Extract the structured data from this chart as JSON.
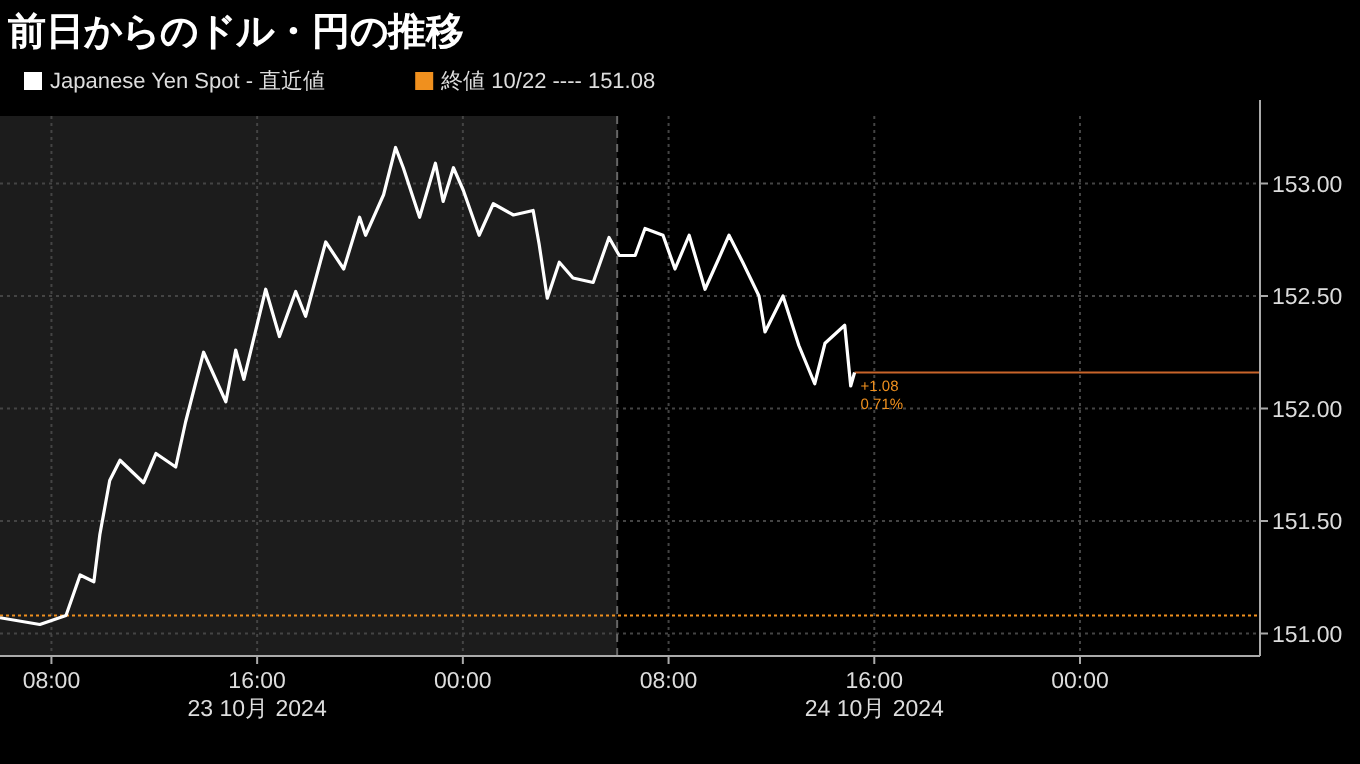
{
  "chart_data": {
    "type": "line",
    "title": "前日からのドル・円の推移",
    "x": [
      "2024-10-23T06:00",
      "2024-10-23T07:33",
      "2024-10-23T08:34",
      "2024-10-23T09:07",
      "2024-10-23T09:39",
      "2024-10-23T09:53",
      "2024-10-23T10:16",
      "2024-10-23T10:40",
      "2024-10-23T11:35",
      "2024-10-23T12:04",
      "2024-10-23T12:50",
      "2024-10-23T13:13",
      "2024-10-23T13:55",
      "2024-10-23T14:47",
      "2024-10-23T15:10",
      "2024-10-23T15:29",
      "2024-10-23T16:20",
      "2024-10-23T16:52",
      "2024-10-23T17:30",
      "2024-10-23T17:53",
      "2024-10-23T18:40",
      "2024-10-23T19:22",
      "2024-10-23T19:59",
      "2024-10-23T20:13",
      "2024-10-23T20:55",
      "2024-10-23T21:23",
      "2024-10-23T21:41",
      "2024-10-23T22:19",
      "2024-10-23T22:56",
      "2024-10-23T23:14",
      "2024-10-23T23:38",
      "2024-10-24T00:01",
      "2024-10-24T00:38",
      "2024-10-24T01:11",
      "2024-10-24T01:58",
      "2024-10-24T02:44",
      "2024-10-24T02:58",
      "2024-10-24T03:17",
      "2024-10-24T03:45",
      "2024-10-24T04:17",
      "2024-10-24T05:04",
      "2024-10-24T05:41",
      "2024-10-24T06:05",
      "2024-10-24T06:42",
      "2024-10-24T07:05",
      "2024-10-24T07:47",
      "2024-10-24T08:15",
      "2024-10-24T08:48",
      "2024-10-24T09:25",
      "2024-10-24T09:58",
      "2024-10-24T10:21",
      "2024-10-24T10:53",
      "2024-10-24T11:31",
      "2024-10-24T11:45",
      "2024-10-24T12:27",
      "2024-10-24T13:04",
      "2024-10-24T13:41",
      "2024-10-24T14:05",
      "2024-10-24T14:51",
      "2024-10-24T15:05",
      "2024-10-24T15:14"
    ],
    "series": [
      {
        "name": "Japanese Yen Spot - 直近値",
        "color": "#ffffff",
        "values": [
          151.07,
          151.04,
          151.08,
          151.26,
          151.23,
          151.44,
          151.68,
          151.77,
          151.67,
          151.8,
          151.74,
          151.94,
          152.25,
          152.03,
          152.26,
          152.13,
          152.53,
          152.32,
          152.52,
          152.41,
          152.74,
          152.62,
          152.85,
          152.77,
          152.95,
          153.16,
          153.07,
          152.85,
          153.09,
          152.92,
          153.07,
          152.97,
          152.77,
          152.91,
          152.86,
          152.88,
          152.73,
          152.49,
          152.65,
          152.58,
          152.56,
          152.76,
          152.68,
          152.68,
          152.8,
          152.77,
          152.62,
          152.77,
          152.53,
          152.67,
          152.77,
          152.65,
          152.5,
          152.34,
          152.5,
          152.28,
          152.11,
          152.29,
          152.37,
          152.1,
          152.16
        ]
      }
    ],
    "xlim": [
      "2024-10-23T06:00",
      "2024-10-25T07:00"
    ],
    "xticks": [
      {
        "value": "2024-10-23T08:00",
        "label": "08:00"
      },
      {
        "value": "2024-10-23T16:00",
        "label": "16:00\n23 10月 2024"
      },
      {
        "value": "2024-10-24T00:00",
        "label": "00:00"
      },
      {
        "value": "2024-10-24T08:00",
        "label": "08:00"
      },
      {
        "value": "2024-10-24T16:00",
        "label": "16:00\n24 10月 2024"
      },
      {
        "value": "2024-10-25T00:00",
        "label": "00:00"
      }
    ],
    "ylim": [
      150.9,
      153.3
    ],
    "yticks": [
      {
        "value": 151,
        "label": "151.00"
      },
      {
        "value": 151.5,
        "label": "151.50"
      },
      {
        "value": 152,
        "label": "152.00"
      },
      {
        "value": 152.5,
        "label": "152.50"
      },
      {
        "value": 153,
        "label": "153.00"
      }
    ],
    "grid": true,
    "legend": "top left",
    "ref_lines": [
      {
        "axis": "y",
        "value": 151.08,
        "label": "終値 10/22 ---- 151.08",
        "color": "#f0901e",
        "line_style": "dotted"
      },
      {
        "axis": "y",
        "value": 152.16,
        "color": "#c8642a",
        "line_style": "solid"
      },
      {
        "axis": "x",
        "value": "2024-10-24T06:00",
        "color": "#666666",
        "line_style": "dashed"
      }
    ],
    "bands": [
      {
        "axis": "x",
        "from": "2024-10-23T06:00",
        "to": "2024-10-24T06:00",
        "color": "#1c1c1c"
      }
    ],
    "annotations": [
      {
        "text": "+1.08",
        "x": "2024-10-24T15:14",
        "y": 152.16
      },
      {
        "text": "0.71%",
        "x": "2024-10-24T15:14",
        "y": 152.16
      }
    ]
  }
}
